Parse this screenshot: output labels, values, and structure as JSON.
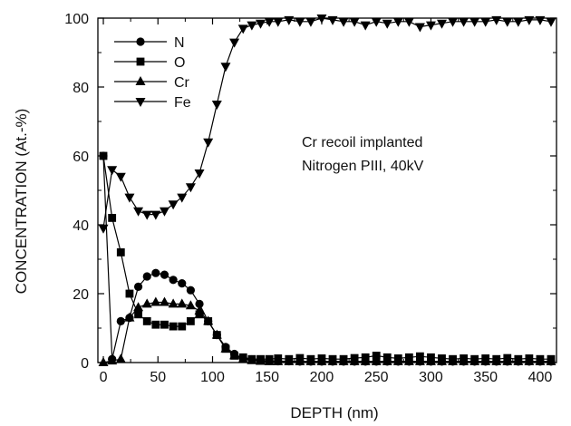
{
  "chart_data": {
    "type": "line",
    "title": "",
    "xlabel": "DEPTH (nm)",
    "ylabel": "CONCENTRATION (At.-%)",
    "xlim": [
      -5,
      415
    ],
    "ylim": [
      0,
      100
    ],
    "xticks": [
      0,
      50,
      100,
      150,
      200,
      250,
      300,
      350,
      400
    ],
    "yticks": [
      0,
      20,
      40,
      60,
      80,
      100
    ],
    "grid": false,
    "legend_position": "top-left",
    "annotation": [
      "Cr recoil implanted",
      "Nitrogen PIII, 40kV"
    ],
    "colors": {
      "series": "#000000",
      "background": "#ffffff"
    },
    "series": [
      {
        "name": "N",
        "marker": "circle",
        "x": [
          0,
          8,
          16,
          24,
          32,
          40,
          48,
          56,
          64,
          72,
          80,
          88,
          96,
          104,
          112,
          120,
          128,
          136,
          144,
          152,
          160,
          170,
          180,
          190,
          200,
          210,
          220,
          230,
          240,
          250,
          260,
          270,
          280,
          290,
          300,
          310,
          320,
          330,
          340,
          350,
          360,
          370,
          380,
          390,
          400,
          410
        ],
        "y": [
          60,
          1,
          12,
          13,
          22,
          25,
          26,
          25.5,
          24,
          23,
          21,
          17,
          12,
          8,
          4.5,
          2.5,
          1.2,
          0.8,
          0.6,
          0.5,
          0.4,
          0.4,
          0.3,
          0.3,
          0.3,
          0.3,
          0.3,
          0.3,
          0.3,
          0.3,
          0.3,
          0.3,
          0.3,
          0.3,
          0.3,
          0.3,
          0.3,
          0.3,
          0.3,
          0.3,
          0.3,
          0.3,
          0.3,
          0.3,
          0.3,
          0.3
        ]
      },
      {
        "name": "O",
        "marker": "square",
        "x": [
          0,
          8,
          16,
          24,
          32,
          40,
          48,
          56,
          64,
          72,
          80,
          88,
          96,
          104,
          112,
          120,
          128,
          136,
          144,
          152,
          160,
          170,
          180,
          190,
          200,
          210,
          220,
          230,
          240,
          250,
          260,
          270,
          280,
          290,
          300,
          310,
          320,
          330,
          340,
          350,
          360,
          370,
          380,
          390,
          400,
          410
        ],
        "y": [
          60,
          42,
          32,
          20,
          14,
          12,
          11,
          11,
          10.5,
          10.5,
          12,
          14,
          12,
          8,
          4,
          2,
          1.5,
          1,
          1,
          1,
          1.2,
          1,
          1.3,
          1,
          1.2,
          1,
          1,
          1.3,
          1.5,
          2,
          1.5,
          1.2,
          1.5,
          1.8,
          1.5,
          1.2,
          1,
          1.2,
          1,
          1.2,
          1,
          1.3,
          1,
          1.2,
          1,
          1
        ]
      },
      {
        "name": "Cr",
        "marker": "triangle-up",
        "x": [
          0,
          8,
          16,
          24,
          32,
          40,
          48,
          56,
          64,
          72,
          80,
          88,
          96,
          104,
          112,
          120,
          128,
          136,
          144,
          152,
          160,
          170,
          180,
          190,
          200,
          210,
          220,
          230,
          240,
          250,
          260,
          270,
          280,
          290,
          300,
          310,
          320,
          330,
          340,
          350,
          360,
          370,
          380,
          390,
          400,
          410
        ],
        "y": [
          0,
          0.5,
          1,
          13,
          16,
          17,
          17.5,
          17.5,
          17,
          17,
          16.5,
          15,
          12,
          8,
          4,
          2,
          1,
          0.6,
          0.4,
          0.3,
          0.3,
          0.3,
          0.3,
          0.3,
          0.3,
          0.3,
          0.3,
          0.3,
          0.3,
          0.3,
          0.3,
          0.3,
          0.3,
          0.3,
          0.3,
          0.3,
          0.3,
          0.3,
          0.3,
          0.3,
          0.3,
          0.3,
          0.3,
          0.3,
          0.3,
          0.3
        ]
      },
      {
        "name": "Fe",
        "marker": "triangle-down",
        "x": [
          0,
          8,
          16,
          24,
          32,
          40,
          48,
          56,
          64,
          72,
          80,
          88,
          96,
          104,
          112,
          120,
          128,
          136,
          144,
          152,
          160,
          170,
          180,
          190,
          200,
          210,
          220,
          230,
          240,
          250,
          260,
          270,
          280,
          290,
          300,
          310,
          320,
          330,
          340,
          350,
          360,
          370,
          380,
          390,
          400,
          410
        ],
        "y": [
          39,
          56,
          54,
          48,
          44,
          43,
          43,
          44,
          46,
          48,
          51,
          55,
          64,
          75,
          86,
          93,
          97,
          98,
          98.5,
          99,
          99,
          99.5,
          99,
          99,
          100,
          99.5,
          99,
          99,
          98,
          99,
          98.5,
          99,
          99,
          97.5,
          98,
          98.5,
          99,
          99,
          99,
          99,
          99.5,
          99,
          99,
          99.5,
          99.5,
          99
        ]
      }
    ]
  }
}
